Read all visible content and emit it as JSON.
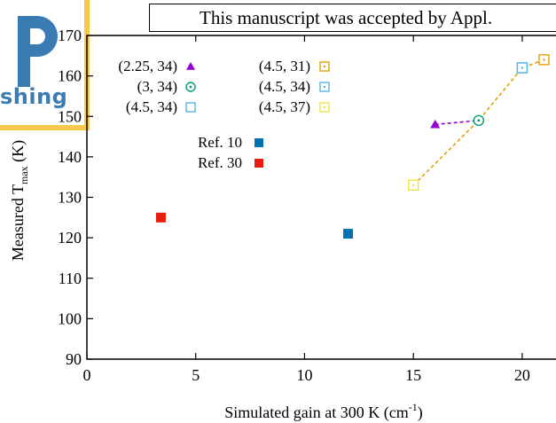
{
  "banner": {
    "text": "This manuscript was accepted by Appl."
  },
  "logo": {
    "text": "shing",
    "icon": "publishing-logo-icon",
    "accent": "#f7c948",
    "brand": "#3b7bb4"
  },
  "chart_data": {
    "type": "scatter",
    "xlabel": "Simulated gain at 300 K (cm",
    "xlabel_sup": "-1",
    "xlabel_close": ")",
    "ylabel": "Measured T",
    "ylabel_sub": "max",
    "ylabel_close": " (K)",
    "xlim": [
      0,
      22
    ],
    "ylim": [
      90,
      170
    ],
    "xticks": [
      0,
      5,
      10,
      15,
      20
    ],
    "yticks": [
      90,
      100,
      110,
      120,
      130,
      140,
      150,
      160,
      170
    ],
    "grid": false,
    "series": [
      {
        "name": "(2.25, 34)",
        "marker": "triangle",
        "color": "#9400d3",
        "x": 16,
        "y": 148
      },
      {
        "name": "(3, 34)",
        "marker": "circle-dot",
        "color": "#009e73",
        "x": 18,
        "y": 149
      },
      {
        "name": "(4.5, 34)",
        "marker": "square-open",
        "color": "#56b4e9",
        "x": 20,
        "y": 162
      },
      {
        "name": "(4.5, 31)",
        "marker": "square-dot",
        "color": "#e69f00",
        "x": 21,
        "y": 164
      },
      {
        "name": "(4.5, 34)",
        "marker": "square-dot",
        "color": "#56b4e9",
        "x": 20,
        "y": 162
      },
      {
        "name": "(4.5, 37)",
        "marker": "square-dot",
        "color": "#f0e442",
        "x": 15,
        "y": 133
      },
      {
        "name": "Ref. 10",
        "marker": "square-filled",
        "color": "#0072b2",
        "x": 12,
        "y": 121
      },
      {
        "name": "Ref. 30",
        "marker": "square-filled",
        "color": "#e51e10",
        "x": 3.4,
        "y": 125
      }
    ],
    "lines": [
      {
        "color": "#9400d3",
        "style": "dashed",
        "x": [
          16,
          18
        ],
        "y": [
          148,
          149
        ]
      },
      {
        "color": "#e69f00",
        "style": "dashed",
        "x": [
          15,
          18,
          20,
          21
        ],
        "y": [
          133,
          149,
          162,
          164
        ]
      }
    ],
    "legend_placement": "top-left"
  }
}
